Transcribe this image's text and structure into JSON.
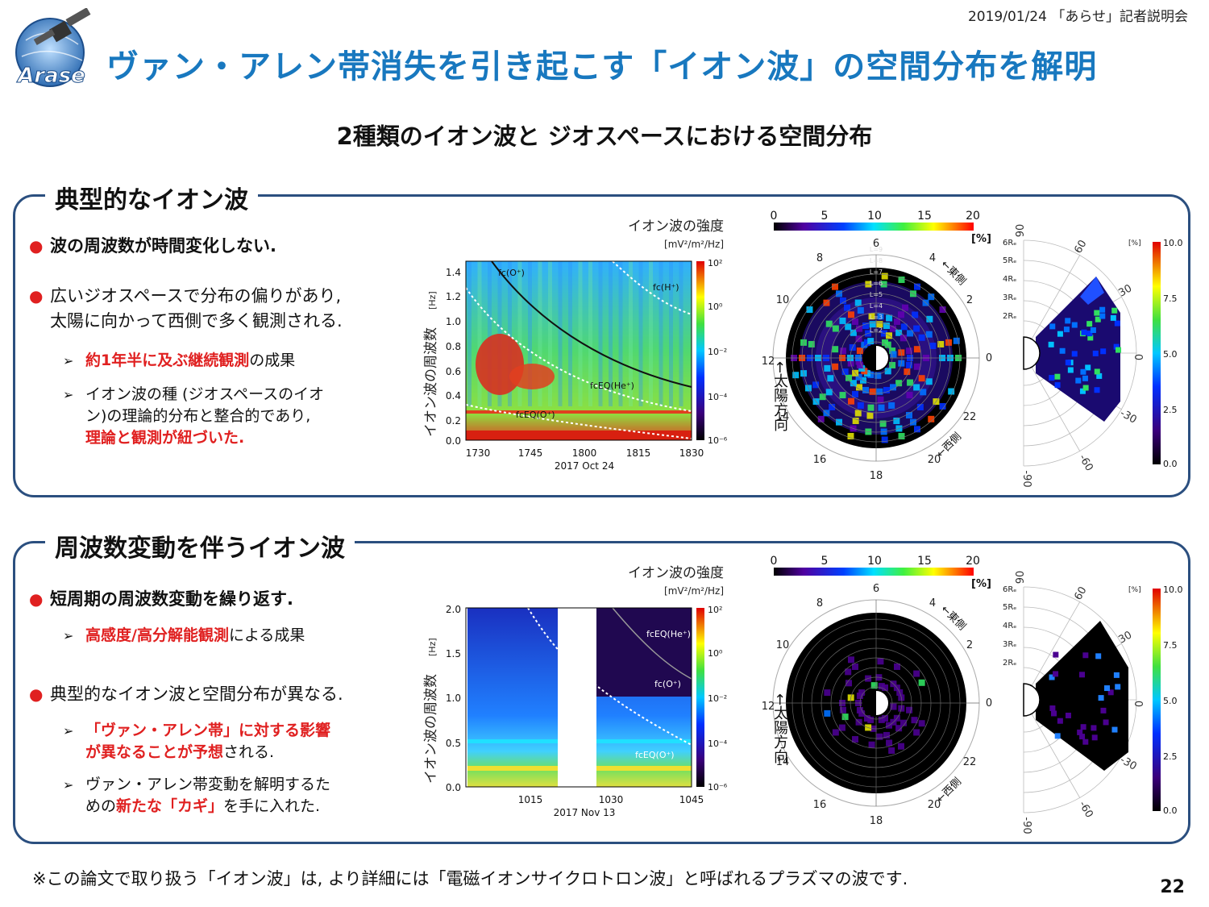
{
  "header": {
    "date_event": "2019/01/24 「あらせ」記者説明会",
    "title": "ヴァン・アレン帯消失を引き起こす「イオン波」の空間分布を解明",
    "logo_text": "Arase"
  },
  "subtitle": "2種類のイオン波と ジオスペースにおける空間分布",
  "panel1": {
    "title": "典型的なイオン波",
    "bullet1": "波の周波数が時間変化しない.",
    "bullet2_line1": "広いジオスペースで分布の偏りがあり,",
    "bullet2_line2": "太陽に向かって西側で多く観測される.",
    "sub1_red": "約1年半に及ぶ継続観測",
    "sub1_rest": "の成果",
    "sub2_line1": "イオン波の種 (ジオスペースのイオ",
    "sub2_line2": "ン)の理論的分布と整合的であり,",
    "sub2_red": "理論と観測が紐づいた.",
    "spectrogram": {
      "cbar_title": "イオン波の強度",
      "cbar_unit": "[mV²/m²/Hz]",
      "ylabel": "イオン波の周波数",
      "yunit": "[Hz]",
      "yticks": [
        "1.4",
        "1.2",
        "1.0",
        "0.8",
        "0.6",
        "0.4",
        "0.2",
        "0.0"
      ],
      "xticks": [
        "1730",
        "1745",
        "1800",
        "1815",
        "1830"
      ],
      "date": "2017 Oct 24",
      "cbar_ticks": [
        "10²",
        "10⁰",
        "10⁻²",
        "10⁻⁴",
        "10⁻⁶"
      ],
      "labels": [
        "fc(O⁺)",
        "fc(H⁺)",
        "fcEQ(He⁺)",
        "fcEQ(O⁺)"
      ]
    },
    "polar": {
      "scale_ticks": [
        "0",
        "5",
        "10",
        "15",
        "20"
      ],
      "scale_unit": "[%]",
      "lt_labels": [
        "6",
        "4",
        "2",
        "0",
        "22",
        "20",
        "18",
        "16",
        "14",
        "12",
        "10",
        "8"
      ],
      "l_labels": [
        "L=9",
        "L=8",
        "L=7",
        "L=6",
        "L=5",
        "L=4",
        "L=3",
        "L=2"
      ],
      "east": "←東側",
      "west": "←西側",
      "sun_dir": "←太陽方向"
    },
    "meridian": {
      "r_labels": [
        "6Rₑ",
        "5Rₑ",
        "4Rₑ",
        "3Rₑ",
        "2Rₑ"
      ],
      "lat_labels": [
        "90",
        "60",
        "30",
        "0",
        "-30",
        "-60",
        "-90"
      ],
      "cbar_unit": "[%]",
      "cbar_ticks": [
        "10.0",
        "7.5",
        "5.0",
        "2.5",
        "0.0"
      ]
    }
  },
  "panel2": {
    "title": "周波数変動を伴うイオン波",
    "bullet1": "短周期の周波数変動を繰り返す.",
    "sub1_red": "高感度/高分解能観測",
    "sub1_rest": "による成果",
    "bullet2": "典型的なイオン波と空間分布が異なる.",
    "sub2_red1": "「ヴァン・アレン帯」に対する影響",
    "sub2_red2": "が異なることが予想",
    "sub2_rest": "される.",
    "sub3_line1": "ヴァン・アレン帯変動を解明するた",
    "sub3_pre": "めの",
    "sub3_red": "新たな「カギ」",
    "sub3_post": "を手に入れた.",
    "spectrogram": {
      "cbar_title": "イオン波の強度",
      "cbar_unit": "[mV²/m²/Hz]",
      "ylabel": "イオン波の周波数",
      "yunit": "[Hz]",
      "yticks": [
        "2.0",
        "1.5",
        "1.0",
        "0.5",
        "0.0"
      ],
      "xticks": [
        "1015",
        "1030",
        "1045"
      ],
      "date": "2017 Nov 13",
      "cbar_ticks": [
        "10²",
        "10⁰",
        "10⁻²",
        "10⁻⁴",
        "10⁻⁶"
      ],
      "labels": [
        "fcEQ(He⁺)",
        "fc(O⁺)",
        "fcEQ(O⁺)"
      ]
    },
    "polar": {
      "scale_ticks": [
        "0",
        "5",
        "10",
        "15",
        "20"
      ],
      "scale_unit": "[%]",
      "east": "←東側",
      "west": "←西側",
      "sun_dir": "←太陽方向"
    },
    "meridian": {
      "cbar_unit": "[%]",
      "cbar_ticks": [
        "10.0",
        "7.5",
        "5.0",
        "2.5",
        "0.0"
      ]
    }
  },
  "footnote": "※この論文で取り扱う「イオン波」は, より詳細には「電磁イオンサイクロトロン波」と呼ばれるプラズマの波です.",
  "page_number": "22",
  "colors": {
    "title_blue": "#1878bf",
    "accent_red": "#e02020",
    "panel_border": "#2b4f7f"
  }
}
